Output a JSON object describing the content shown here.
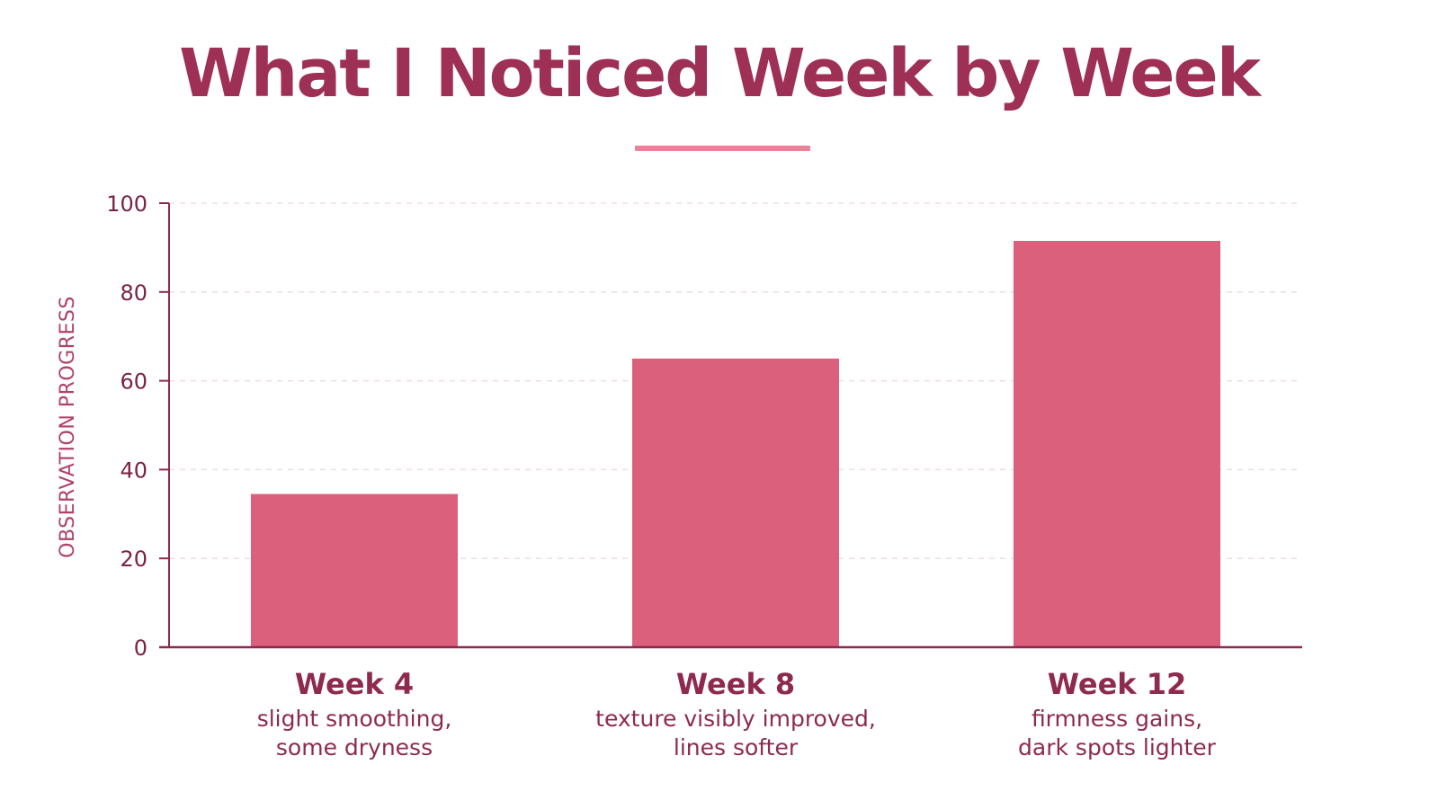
{
  "chart_data": {
    "type": "bar",
    "title": "What I Noticed Week by Week",
    "ylabel": "OBSERVATION PROGRESS",
    "xlabel": "",
    "ylim": [
      0,
      100
    ],
    "yticks": [
      0,
      20,
      40,
      60,
      80,
      100
    ],
    "grid": true,
    "categories": [
      "Week 4",
      "Week 8",
      "Week 12"
    ],
    "notes": [
      [
        "slight smoothing,",
        "some dryness"
      ],
      [
        "texture visibly improved,",
        "lines softer"
      ],
      [
        "firmness gains,",
        "dark spots lighter"
      ]
    ],
    "values": [
      34.5,
      65,
      91.5
    ]
  },
  "colors": {
    "title": "#9e2f55",
    "accent_underline": "#e8839a",
    "bar": "#db607c",
    "axis": "#8e2a4e",
    "grid": "#eedde2"
  }
}
